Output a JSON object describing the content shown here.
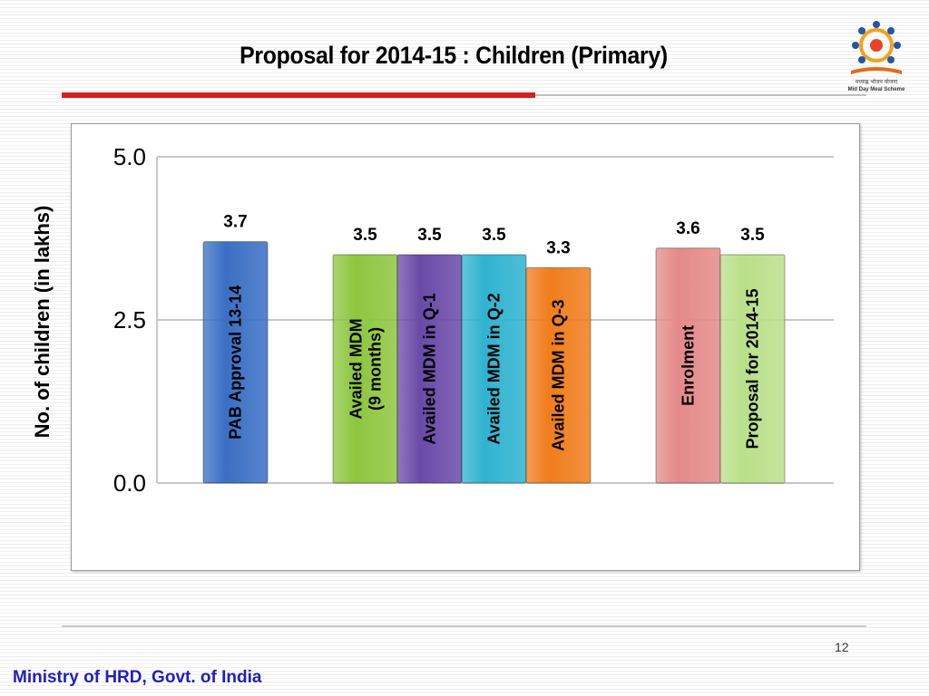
{
  "slide": {
    "title": "Proposal for 2014-15 : Children (Primary)",
    "page_number": "12",
    "footer": "Ministry of HRD, Govt. of India",
    "logo_icon": "mid-day-meal-scheme-logo",
    "logo_text_line1": "मध्याह्न भोजन योजना",
    "logo_text_line2": "Mid Day Meal Scheme"
  },
  "chart_data": {
    "type": "bar",
    "title": "",
    "xlabel": "",
    "ylabel": "No. of children (in lakhs)",
    "ylim": [
      0,
      5
    ],
    "yticks": [
      "0.0",
      "2.5",
      "5.0"
    ],
    "grid": true,
    "legend": "none",
    "categories": [
      "PAB Approval 13-14",
      "Availed MDM\n(9 months)",
      "Availed MDM in Q-1",
      "Availed MDM in Q-2",
      "Availed MDM in Q-3",
      "Enrolment",
      "Proposal for 2014-15"
    ],
    "values": [
      3.7,
      3.5,
      3.5,
      3.5,
      3.3,
      3.6,
      3.5
    ],
    "data_labels": [
      "3.7",
      "3.5",
      "3.5",
      "3.5",
      "3.3",
      "3.6",
      "3.5"
    ],
    "colors": [
      "#3a6fc4",
      "#8dc63f",
      "#6a4aa8",
      "#2fb3d0",
      "#f07d1c",
      "#e58a8a",
      "#b9e08a"
    ]
  }
}
